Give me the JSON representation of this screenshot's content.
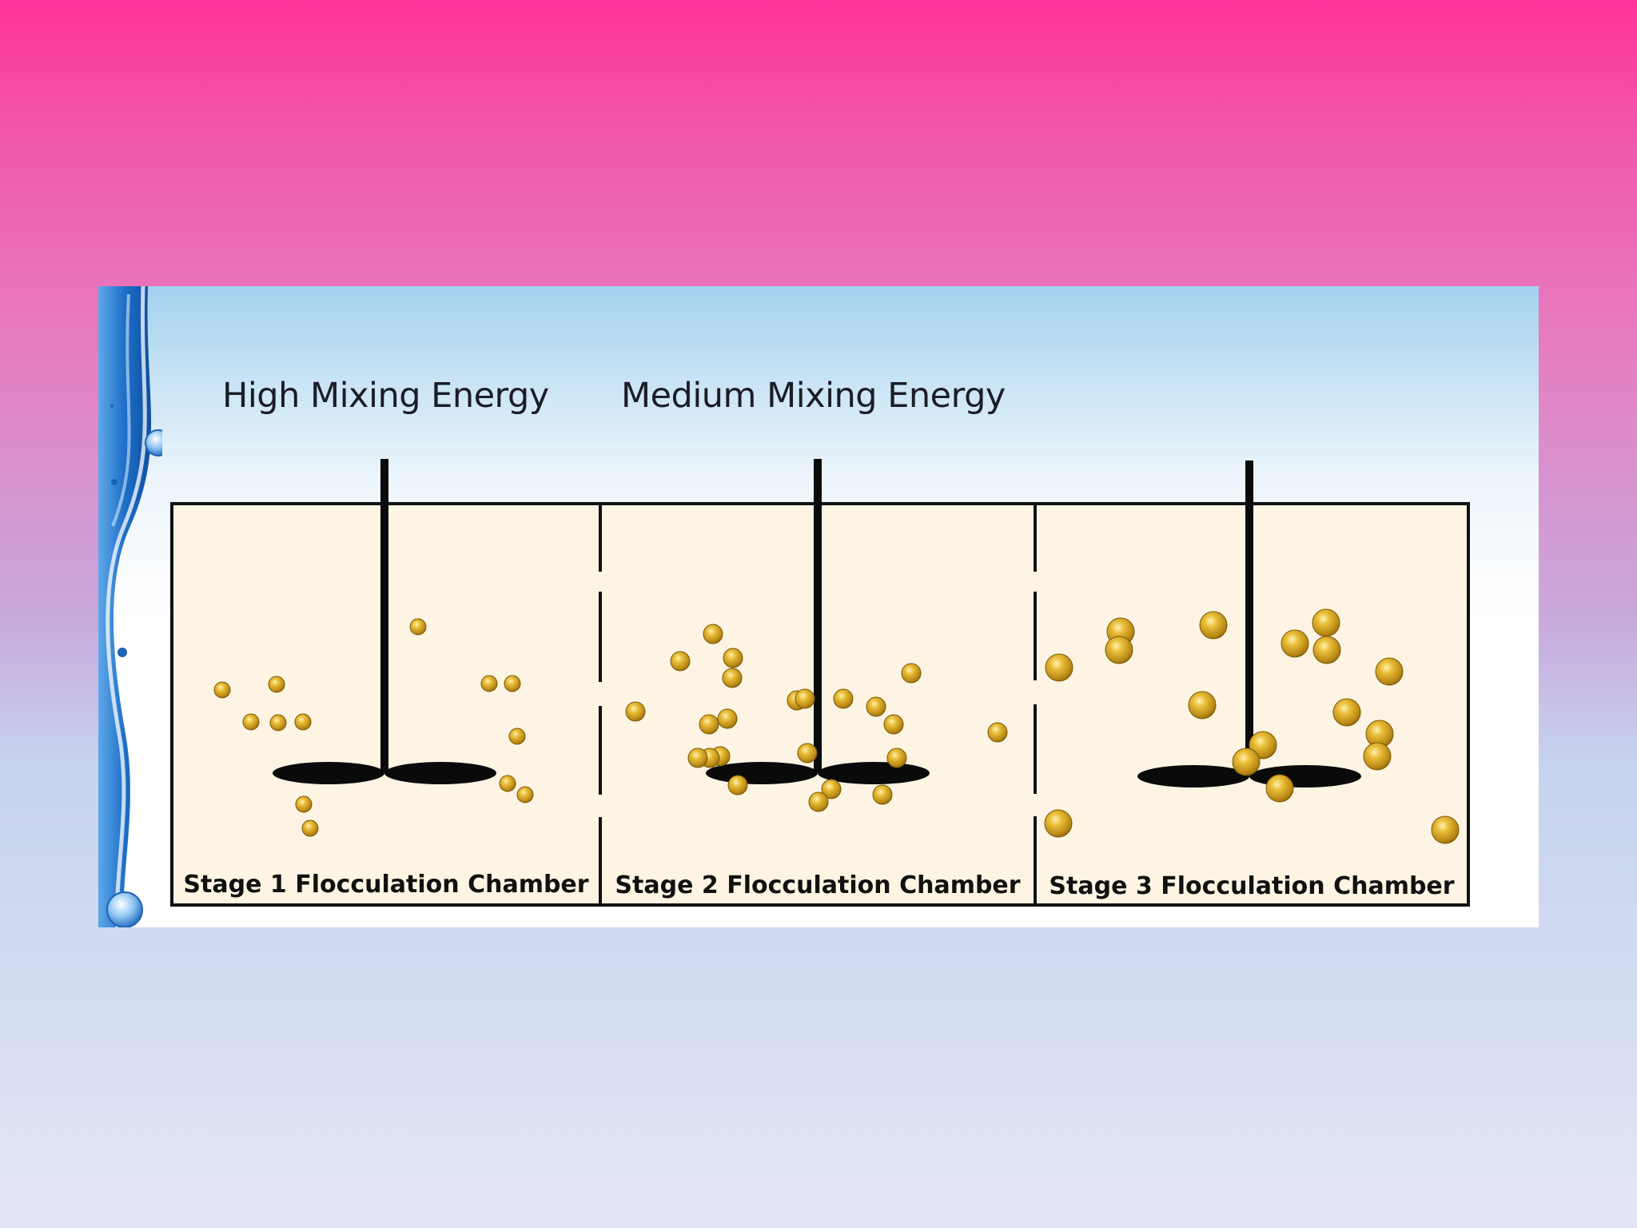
{
  "headings": {
    "high_mixing": "High Mixing Energy",
    "medium_mixing": "Medium Mixing Energy"
  },
  "chambers": [
    {
      "label": "Stage 1 Flocculation Chamber"
    },
    {
      "label": "Stage 2 Flocculation Chamber"
    },
    {
      "label": "Stage 3 Flocculation Chamber"
    }
  ],
  "icons": {
    "mixer": "mixer-paddle-icon",
    "floc": "floc-particle-icon",
    "decoration": "water-wave-decoration"
  },
  "colors": {
    "tank_fill": "#fdf4e3",
    "tank_stroke": "#111111",
    "floc": "#d2a21c",
    "floc_dark": "#8a6608",
    "paddle": "#0a0a0a",
    "wave": "#1565c0"
  }
}
